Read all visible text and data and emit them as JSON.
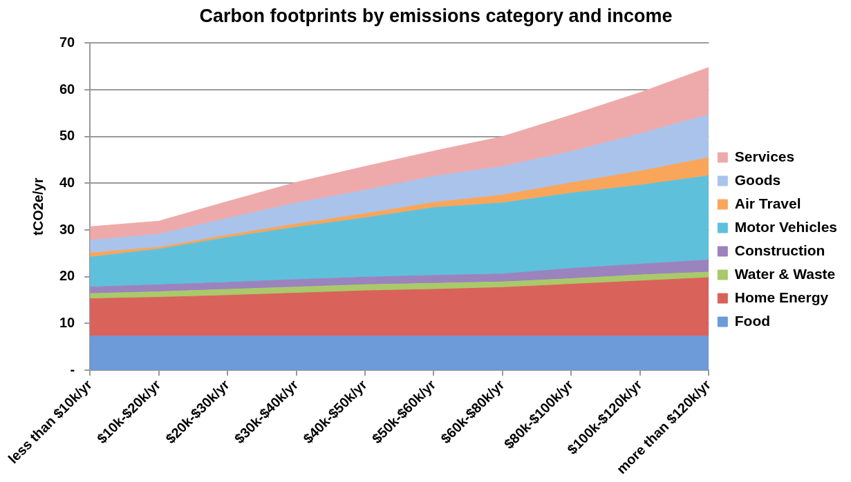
{
  "chart_data": {
    "type": "area",
    "title": "Carbon footprints by emissions category and income",
    "ylabel": "tCO2e/yr",
    "categories": [
      "less than $10k/yr",
      "$10k-$20k/yr",
      "$20k-$30k/yr",
      "$30k-$40k/yr",
      "$40k-$50k/yr",
      "$50k-$60k/yr",
      "$60k-$80k/yr",
      "$80k-$100k/yr",
      "$100k-$120k/yr",
      "more than $120k/yr"
    ],
    "stacked": true,
    "series": [
      {
        "name": "Food",
        "color": "#6d9ad8",
        "values": [
          7.3,
          7.3,
          7.3,
          7.3,
          7.3,
          7.3,
          7.3,
          7.3,
          7.3,
          7.3
        ]
      },
      {
        "name": "Home Energy",
        "color": "#d9625a",
        "values": [
          8.0,
          8.3,
          8.7,
          9.2,
          9.7,
          10.0,
          10.4,
          11.1,
          11.8,
          12.5
        ]
      },
      {
        "name": "Water & Waste",
        "color": "#a9c96a",
        "values": [
          1.1,
          1.2,
          1.3,
          1.3,
          1.3,
          1.3,
          1.2,
          1.2,
          1.3,
          1.2
        ]
      },
      {
        "name": "Construction",
        "color": "#9b83bd",
        "values": [
          1.4,
          1.5,
          1.5,
          1.6,
          1.6,
          1.7,
          1.7,
          2.2,
          2.3,
          2.6
        ]
      },
      {
        "name": "Motor Vehicles",
        "color": "#5fc0dc",
        "values": [
          6.4,
          7.6,
          9.6,
          11.2,
          12.7,
          14.5,
          15.2,
          16.1,
          16.9,
          18.0
        ]
      },
      {
        "name": "Air Travel",
        "color": "#f9a65a",
        "values": [
          0.9,
          0.4,
          0.5,
          0.7,
          0.9,
          1.1,
          1.7,
          2.2,
          3.0,
          3.9
        ]
      },
      {
        "name": "Goods",
        "color": "#a9c3eb",
        "values": [
          2.7,
          2.8,
          3.6,
          4.5,
          5.0,
          5.6,
          6.1,
          6.7,
          8.0,
          9.2
        ]
      },
      {
        "name": "Services",
        "color": "#eeaaaa",
        "values": [
          2.9,
          2.8,
          3.6,
          4.4,
          5.1,
          5.4,
          6.4,
          7.8,
          8.8,
          10.1
        ]
      }
    ],
    "ylim": [
      0,
      70
    ],
    "yticks": [
      {
        "value": 0,
        "label": "-"
      },
      10,
      20,
      30,
      40,
      50,
      60,
      70
    ],
    "grid": "y",
    "legend": "right"
  }
}
